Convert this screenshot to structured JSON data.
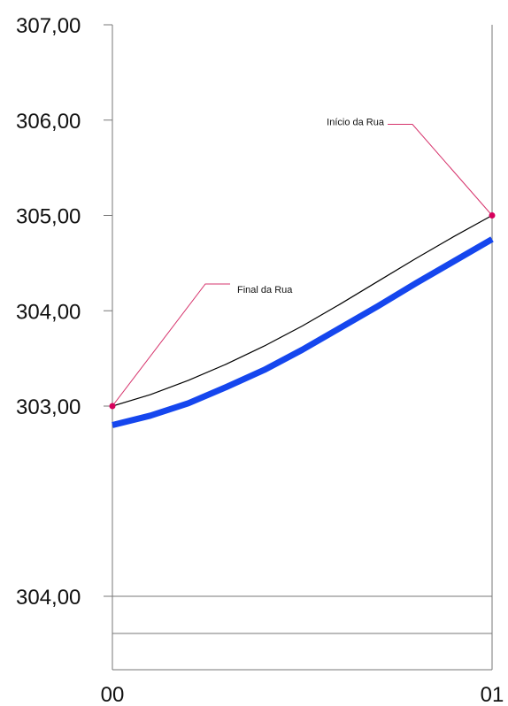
{
  "chart_data": {
    "type": "line",
    "x_ticks": [
      {
        "x": 0,
        "label": "00"
      },
      {
        "x": 1,
        "label": "01"
      }
    ],
    "y_ticks": [
      {
        "y": 307,
        "label": "307,00"
      },
      {
        "y": 306,
        "label": "306,00"
      },
      {
        "y": 305,
        "label": "305,00"
      },
      {
        "y": 304,
        "label": "304,00"
      },
      {
        "y": 303,
        "label": "303,00"
      }
    ],
    "lower_label": "304,00",
    "ylim": [
      303,
      307
    ],
    "xlim": [
      0,
      1
    ],
    "series": [
      {
        "color": "#000000",
        "x": [
          0,
          0.1,
          0.2,
          0.3,
          0.4,
          0.5,
          0.6,
          0.7,
          0.8,
          0.9,
          1.0
        ],
        "y": [
          303.0,
          303.12,
          303.27,
          303.44,
          303.63,
          303.84,
          304.07,
          304.31,
          304.55,
          304.78,
          305.0
        ]
      },
      {
        "color": "#1546ee",
        "x": [
          0,
          0.1,
          0.2,
          0.3,
          0.4,
          0.5,
          0.6,
          0.7,
          0.8,
          0.9,
          1.0
        ],
        "y": [
          302.8,
          302.9,
          303.03,
          303.2,
          303.38,
          303.59,
          303.82,
          304.05,
          304.29,
          304.52,
          304.75
        ]
      }
    ],
    "annotations": [
      {
        "text": "Final da Rua",
        "x": 0,
        "y": 303.0
      },
      {
        "text": "Início da Rua",
        "x": 1,
        "y": 305.0
      }
    ],
    "grid": false
  }
}
